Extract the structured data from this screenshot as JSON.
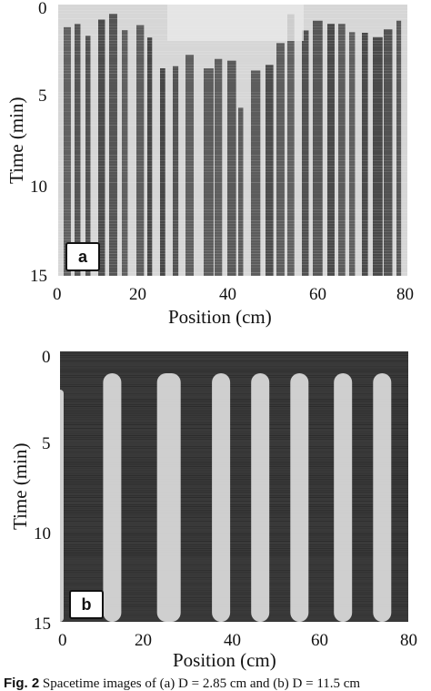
{
  "panels": [
    {
      "id": "a",
      "letter": "a",
      "xlabel": "Position (cm)",
      "ylabel": "Time (min)",
      "xticks": [
        "0",
        "20",
        "40",
        "60",
        "80"
      ],
      "yticks": [
        "0",
        "5",
        "10",
        "15"
      ],
      "xlim": [
        0,
        80
      ],
      "ylim": [
        0,
        15
      ]
    },
    {
      "id": "b",
      "letter": "b",
      "xlabel": "Position (cm)",
      "ylabel": "Time (min)",
      "xticks": [
        "0",
        "20",
        "40",
        "60",
        "80"
      ],
      "yticks": [
        "0",
        "5",
        "10",
        "15"
      ],
      "xlim": [
        0,
        80
      ],
      "ylim": [
        0,
        15
      ],
      "band_centers_cm": [
        0,
        12,
        25,
        37,
        46,
        55,
        65,
        74
      ]
    }
  ],
  "caption": {
    "fig": "Fig. 2",
    "text": "Spacetime images of (a) D = 2.85 cm and (b) D = 11.5 cm"
  },
  "colors": {
    "bg_dark": "#3a3a3a",
    "band_light": "#dcdcdc"
  }
}
